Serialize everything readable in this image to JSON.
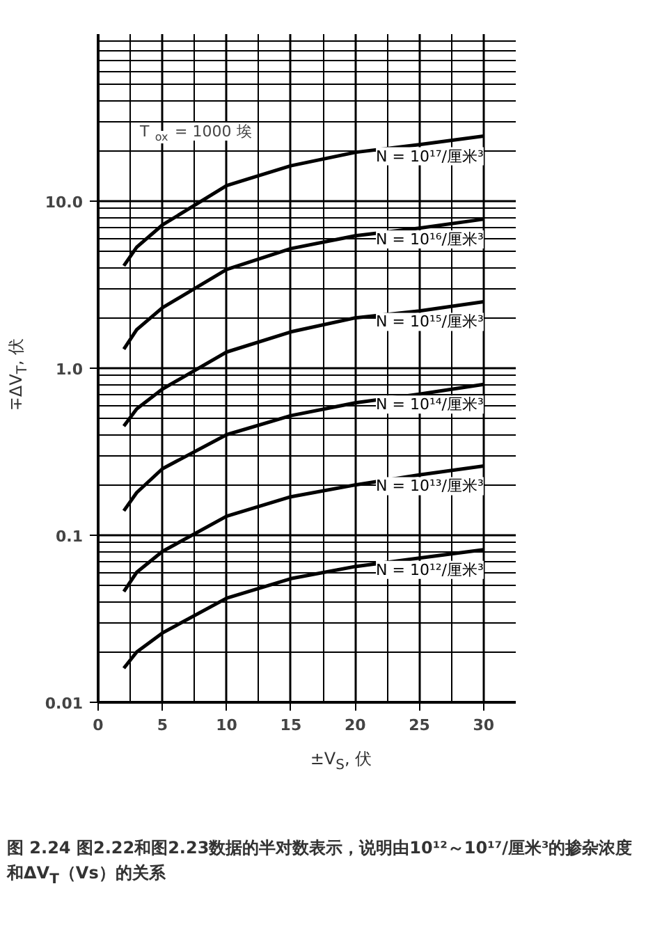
{
  "chart_data": {
    "type": "line",
    "xlabel": "±V$_{S}$, 伏",
    "ylabel": "∓ΔV$_{T}$, 伏",
    "log": "y",
    "grid": true,
    "line_style": "solid",
    "xlim": [
      0,
      32.5
    ],
    "ylim": [
      0.01,
      100
    ],
    "xticks": [
      0,
      5,
      10,
      15,
      20,
      25,
      30
    ],
    "yticks": [
      {
        "value": 0.01,
        "label": "0.01"
      },
      {
        "value": 0.1,
        "label": "0.1"
      },
      {
        "value": 1,
        "label": "1.0"
      },
      {
        "value": 10,
        "label": "10.0"
      }
    ],
    "x": [
      2,
      3,
      5,
      10,
      15,
      20,
      25,
      30
    ],
    "series": [
      {
        "name": "N = 10¹⁷/厘米³",
        "color": "#000000",
        "values": [
          4.1,
          5.3,
          7.2,
          12.4,
          16.3,
          19.6,
          21.8,
          24.5
        ]
      },
      {
        "name": "N = 10¹⁶/厘米³",
        "color": "#000000",
        "values": [
          1.3,
          1.7,
          2.3,
          3.9,
          5.2,
          6.2,
          6.9,
          7.8
        ]
      },
      {
        "name": "N = 10¹⁵/厘米³",
        "color": "#000000",
        "values": [
          0.45,
          0.57,
          0.75,
          1.25,
          1.65,
          2.0,
          2.2,
          2.5
        ]
      },
      {
        "name": "N = 10¹⁴/厘米³",
        "color": "#000000",
        "values": [
          0.14,
          0.18,
          0.25,
          0.4,
          0.52,
          0.62,
          0.7,
          0.8
        ]
      },
      {
        "name": "N = 10¹³/厘米³",
        "color": "#000000",
        "values": [
          0.046,
          0.06,
          0.08,
          0.13,
          0.17,
          0.2,
          0.23,
          0.26
        ]
      },
      {
        "name": "N = 10¹²/厘米³",
        "color": "#000000",
        "values": [
          0.016,
          0.02,
          0.026,
          0.042,
          0.055,
          0.065,
          0.073,
          0.082
        ]
      }
    ],
    "annotations": [
      "T$_{ox}$ = 1000 埃",
      "图 2.24  图2.22和图2.23数据的半对数表示，说明由10¹²～10¹⁷/厘米³的掺杂浓度和ΔV$_{T}$（Vs）的关系"
    ]
  }
}
